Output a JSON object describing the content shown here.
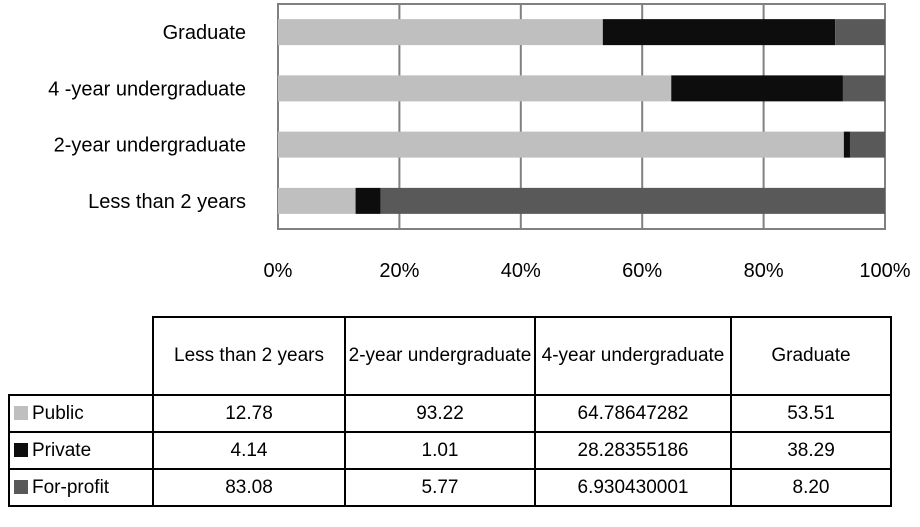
{
  "chart_data": {
    "type": "bar",
    "orientation": "horizontal",
    "stacked": "percent",
    "categories": [
      "Graduate",
      "4 -year undergraduate",
      "2-year undergraduate",
      "Less than 2 years"
    ],
    "series": [
      {
        "name": "Public",
        "color": "#bfbfbf",
        "values": [
          53.51,
          64.78647282,
          93.22,
          12.78
        ]
      },
      {
        "name": "Private",
        "color": "#0d0d0d",
        "values": [
          38.29,
          28.28355186,
          1.01,
          4.14
        ]
      },
      {
        "name": "For-profit",
        "color": "#595959",
        "values": [
          8.2,
          6.930430001,
          5.77,
          83.08
        ]
      }
    ],
    "xlim": [
      0,
      100
    ],
    "xticks": [
      "0%",
      "20%",
      "40%",
      "60%",
      "80%",
      "100%"
    ],
    "grid": true,
    "legend": "table"
  },
  "table": {
    "headers": [
      "Less than 2 years",
      "2-year undergraduate",
      "4-year undergraduate",
      "Graduate"
    ],
    "rows": [
      {
        "label": "Public",
        "color": "#bfbfbf",
        "cells": [
          "12.78",
          "93.22",
          "64.78647282",
          "53.51"
        ]
      },
      {
        "label": "Private",
        "color": "#0d0d0d",
        "cells": [
          "4.14",
          "1.01",
          "28.28355186",
          "38.29"
        ]
      },
      {
        "label": "For-profit",
        "color": "#595959",
        "cells": [
          "83.08",
          "5.77",
          "6.930430001",
          "8.20"
        ]
      }
    ]
  }
}
